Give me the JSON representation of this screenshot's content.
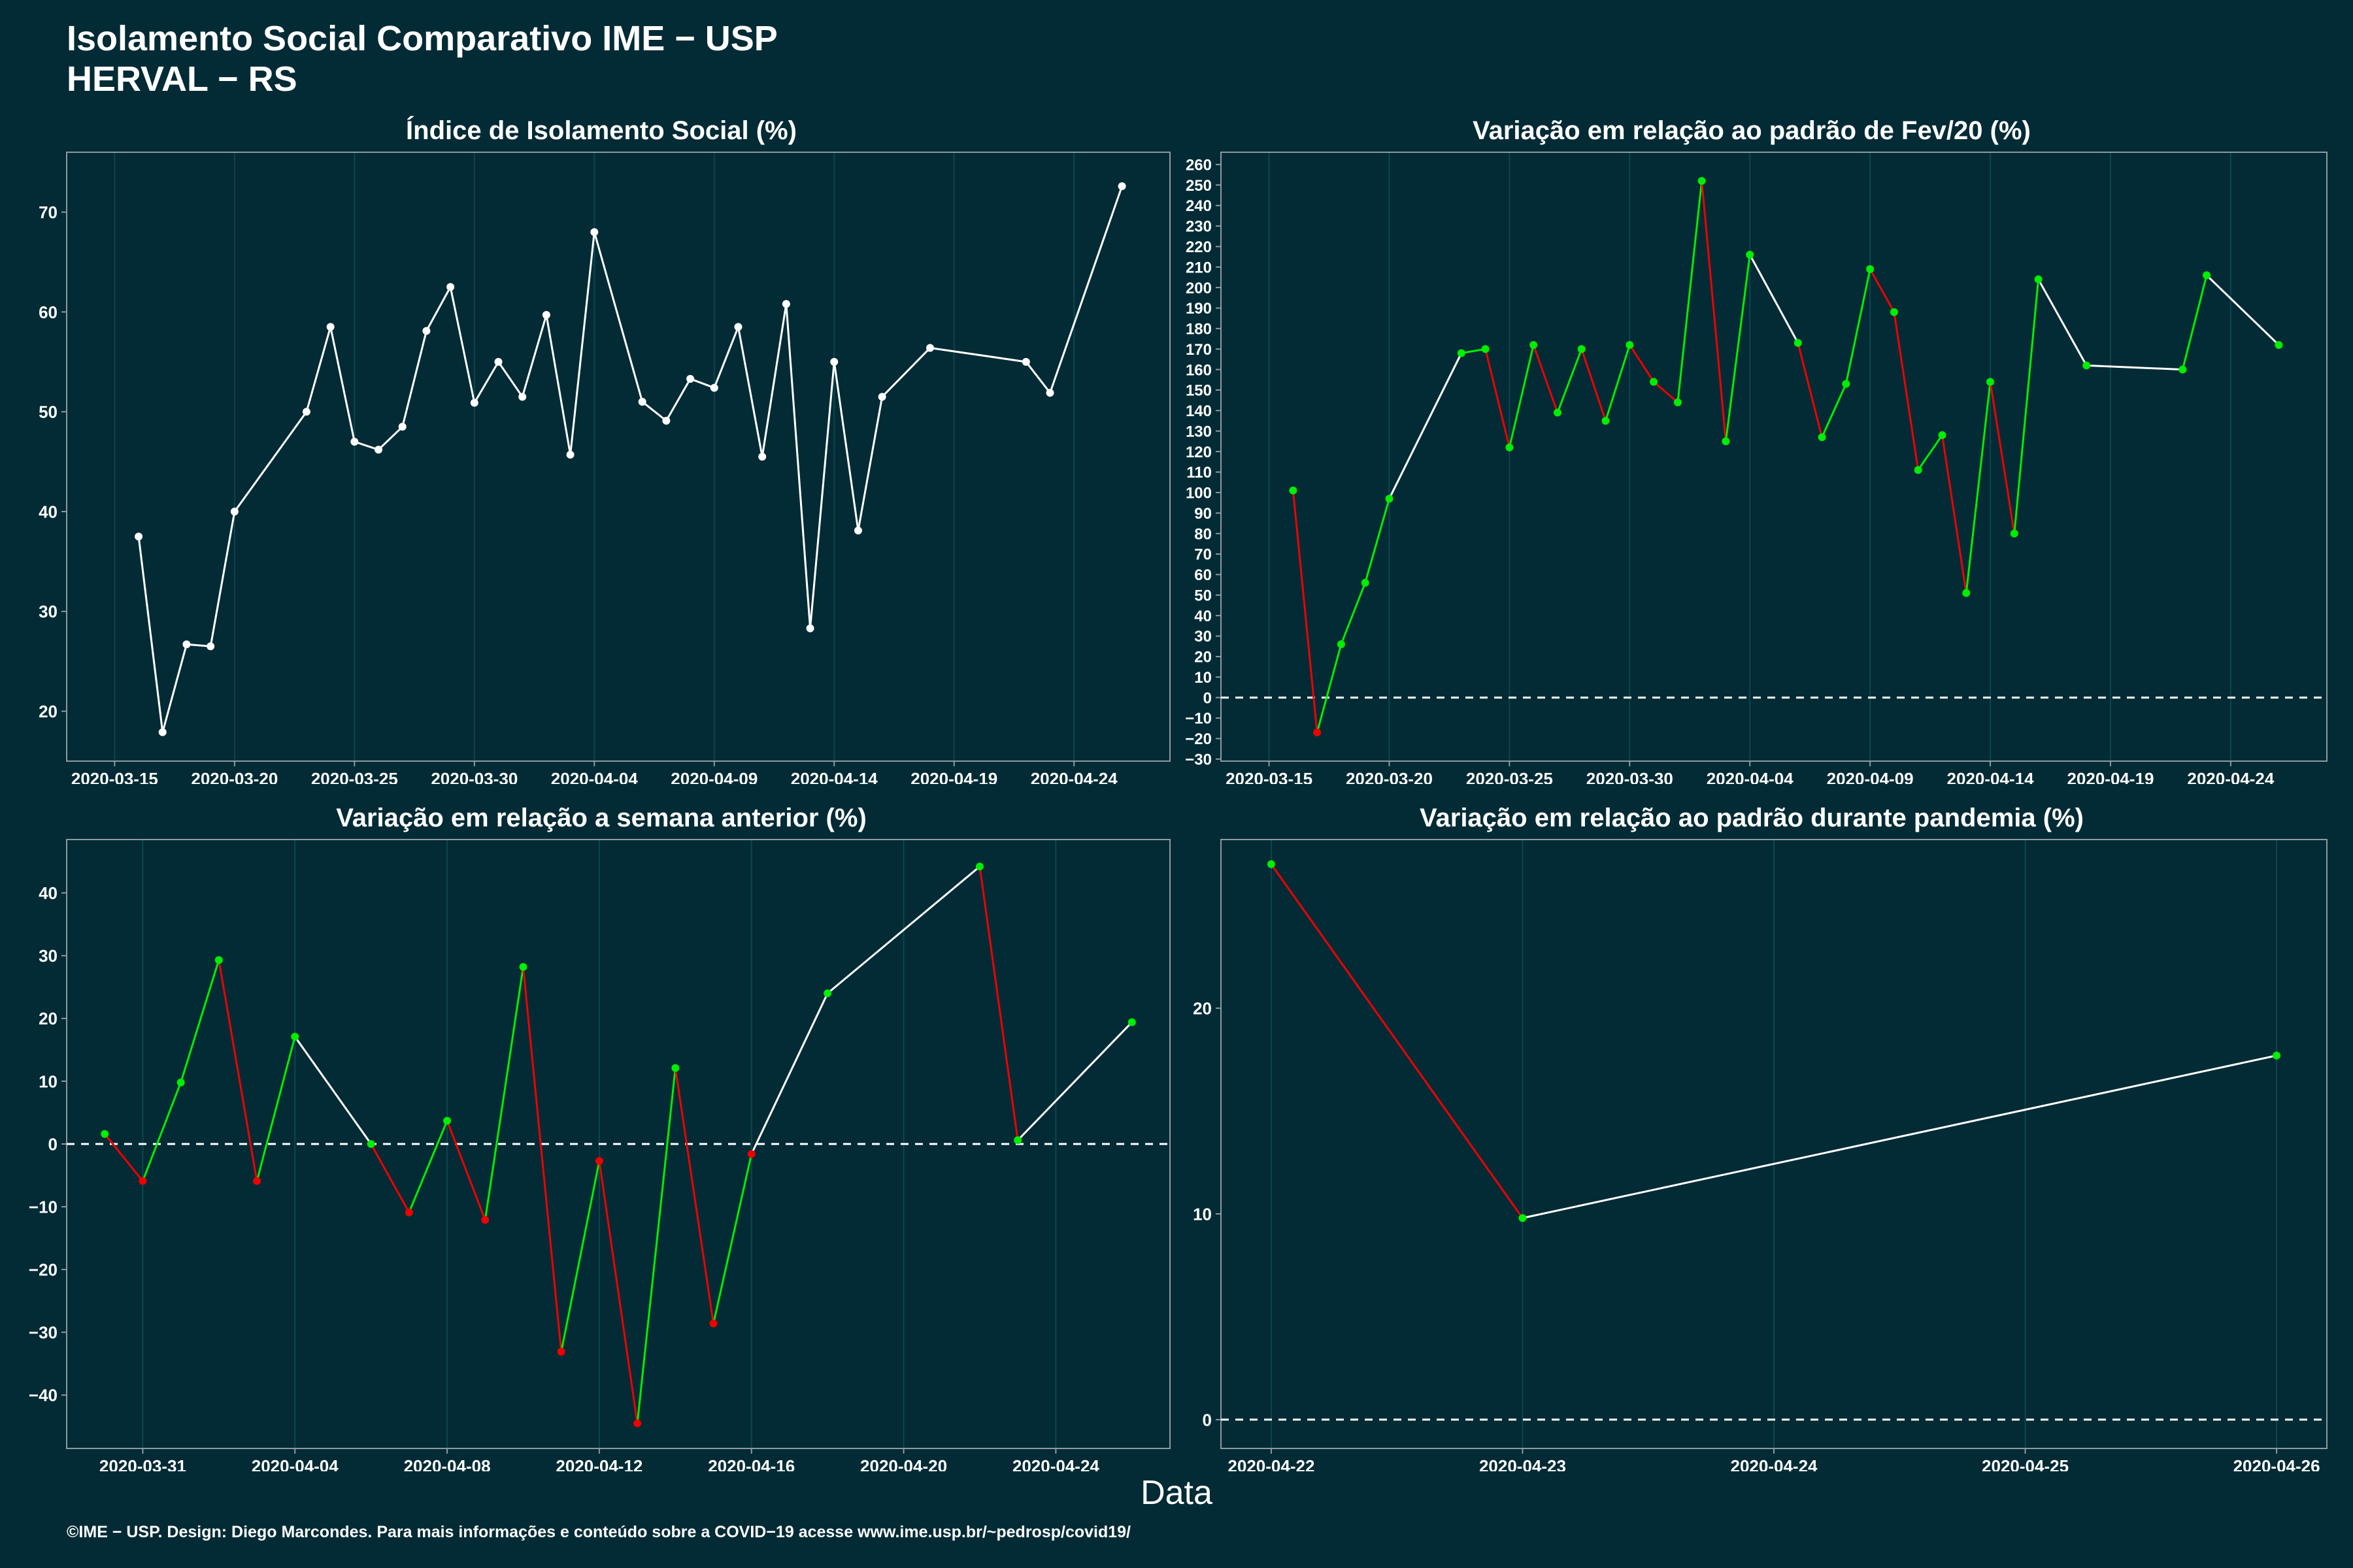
{
  "title_line1": "Isolamento Social Comparativo IME − USP",
  "title_line2": "HERVAL − RS",
  "x_axis_title": "Data",
  "footer": "©IME − USP. Design: Diego Marcondes. Para mais informações e conteúdo sobre a COVID−19 acesse www.ime.usp.br/~pedrosp/covid19/",
  "colors": {
    "background": "#022b35",
    "text": "#ffffff",
    "axis": "#8e9aa0",
    "grid": "#0d4650",
    "up": "#00ee00",
    "down": "#ee0000",
    "neutral": "#ffffff"
  },
  "chart_data": [
    {
      "id": "isolation",
      "type": "line",
      "title": "Índice de Isolamento Social (%)",
      "color_mode": "white",
      "baseline": null,
      "ylim": [
        15,
        76
      ],
      "yticks": [
        20,
        30,
        40,
        50,
        60,
        70
      ],
      "xlim": [
        "2020-03-13",
        "2020-04-28"
      ],
      "xticks": [
        "2020-03-15",
        "2020-03-20",
        "2020-03-25",
        "2020-03-30",
        "2020-04-04",
        "2020-04-09",
        "2020-04-14",
        "2020-04-19",
        "2020-04-24"
      ],
      "points": [
        [
          "2020-03-16",
          37.5
        ],
        [
          "2020-03-17",
          17.9
        ],
        [
          "2020-03-18",
          26.7
        ],
        [
          "2020-03-19",
          26.5
        ],
        [
          "2020-03-20",
          40.0
        ],
        [
          "2020-03-23",
          50.0
        ],
        [
          "2020-03-24",
          58.5
        ],
        [
          "2020-03-25",
          47.0
        ],
        [
          "2020-03-26",
          46.2
        ],
        [
          "2020-03-27",
          48.5
        ],
        [
          "2020-03-28",
          58.1
        ],
        [
          "2020-03-29",
          62.5
        ],
        [
          "2020-03-30",
          50.9
        ],
        [
          "2020-03-31",
          55.0
        ],
        [
          "2020-04-01",
          51.5
        ],
        [
          "2020-04-02",
          59.7
        ],
        [
          "2020-04-03",
          45.7
        ],
        [
          "2020-04-04",
          68.0
        ],
        [
          "2020-04-06",
          51.0
        ],
        [
          "2020-04-07",
          49.1
        ],
        [
          "2020-04-08",
          53.3
        ],
        [
          "2020-04-09",
          52.4
        ],
        [
          "2020-04-10",
          58.5
        ],
        [
          "2020-04-11",
          45.5
        ],
        [
          "2020-04-12",
          60.8
        ],
        [
          "2020-04-13",
          28.3
        ],
        [
          "2020-04-14",
          55.0
        ],
        [
          "2020-04-15",
          38.1
        ],
        [
          "2020-04-16",
          51.5
        ],
        [
          "2020-04-18",
          56.4
        ],
        [
          "2020-04-22",
          55.0
        ],
        [
          "2020-04-23",
          51.9
        ],
        [
          "2020-04-26",
          72.6
        ]
      ]
    },
    {
      "id": "vs-feb",
      "type": "line",
      "title": "Variação em relação ao padrão de Fev/20 (%)",
      "color_mode": "trend",
      "baseline": 0,
      "ylim": [
        -31,
        266
      ],
      "yticks": [
        -30,
        -20,
        -10,
        0,
        10,
        20,
        30,
        40,
        50,
        60,
        70,
        80,
        90,
        100,
        110,
        120,
        130,
        140,
        150,
        160,
        170,
        180,
        190,
        200,
        210,
        220,
        230,
        240,
        250,
        260
      ],
      "xlim": [
        "2020-03-13",
        "2020-04-28"
      ],
      "xticks": [
        "2020-03-15",
        "2020-03-20",
        "2020-03-25",
        "2020-03-30",
        "2020-04-04",
        "2020-04-09",
        "2020-04-14",
        "2020-04-19",
        "2020-04-24"
      ],
      "points": [
        [
          "2020-03-16",
          101
        ],
        [
          "2020-03-17",
          -17
        ],
        [
          "2020-03-18",
          26
        ],
        [
          "2020-03-19",
          56
        ],
        [
          "2020-03-20",
          97
        ],
        [
          "2020-03-23",
          168
        ],
        [
          "2020-03-24",
          170
        ],
        [
          "2020-03-25",
          122
        ],
        [
          "2020-03-26",
          172
        ],
        [
          "2020-03-27",
          139
        ],
        [
          "2020-03-28",
          170
        ],
        [
          "2020-03-29",
          135
        ],
        [
          "2020-03-30",
          172
        ],
        [
          "2020-03-31",
          154
        ],
        [
          "2020-04-01",
          144
        ],
        [
          "2020-04-02",
          252
        ],
        [
          "2020-04-03",
          125
        ],
        [
          "2020-04-04",
          216
        ],
        [
          "2020-04-06",
          173
        ],
        [
          "2020-04-07",
          127
        ],
        [
          "2020-04-08",
          153
        ],
        [
          "2020-04-09",
          209
        ],
        [
          "2020-04-10",
          188
        ],
        [
          "2020-04-11",
          111
        ],
        [
          "2020-04-12",
          128
        ],
        [
          "2020-04-13",
          51
        ],
        [
          "2020-04-14",
          154
        ],
        [
          "2020-04-15",
          80
        ],
        [
          "2020-04-16",
          204
        ],
        [
          "2020-04-18",
          162
        ],
        [
          "2020-04-22",
          160
        ],
        [
          "2020-04-23",
          206
        ],
        [
          "2020-04-26",
          172
        ]
      ]
    },
    {
      "id": "vs-week",
      "type": "line",
      "title": "Variação em relação a semana anterior (%)",
      "color_mode": "trend",
      "baseline": 0,
      "ylim": [
        -48.5,
        48.5
      ],
      "yticks": [
        -40,
        -30,
        -20,
        -10,
        0,
        10,
        20,
        30,
        40
      ],
      "xtick_labels": [
        "−40",
        "−30",
        "−20",
        "−10",
        "0",
        "10",
        "20",
        "30",
        "40"
      ],
      "xlim": [
        "2020-03-29",
        "2020-04-27"
      ],
      "xticks": [
        "2020-03-31",
        "2020-04-04",
        "2020-04-08",
        "2020-04-12",
        "2020-04-16",
        "2020-04-20",
        "2020-04-24"
      ],
      "points": [
        [
          "2020-03-30",
          1.6
        ],
        [
          "2020-03-31",
          -5.9
        ],
        [
          "2020-04-01",
          9.8
        ],
        [
          "2020-04-02",
          29.3
        ],
        [
          "2020-04-03",
          -5.9
        ],
        [
          "2020-04-04",
          17.1
        ],
        [
          "2020-04-06",
          0.0
        ],
        [
          "2020-04-07",
          -10.9
        ],
        [
          "2020-04-08",
          3.7
        ],
        [
          "2020-04-09",
          -12.1
        ],
        [
          "2020-04-10",
          28.2
        ],
        [
          "2020-04-11",
          -33.1
        ],
        [
          "2020-04-12",
          -2.7
        ],
        [
          "2020-04-13",
          -44.5
        ],
        [
          "2020-04-14",
          12.1
        ],
        [
          "2020-04-15",
          -28.6
        ],
        [
          "2020-04-16",
          -1.6
        ],
        [
          "2020-04-18",
          24.0
        ],
        [
          "2020-04-22",
          44.2
        ],
        [
          "2020-04-23",
          0.6
        ],
        [
          "2020-04-26",
          19.4
        ]
      ]
    },
    {
      "id": "vs-pandemic",
      "type": "line",
      "title": "Variação em relação ao padrão durante pandemia (%)",
      "color_mode": "trend",
      "baseline": 0,
      "ylim": [
        -1.4,
        28.2
      ],
      "yticks": [
        0,
        10,
        20
      ],
      "xlim": [
        "2020-04-21T19:12",
        "2020-04-26T04:48"
      ],
      "xticks": [
        "2020-04-22",
        "2020-04-23",
        "2020-04-24",
        "2020-04-25",
        "2020-04-26"
      ],
      "points": [
        [
          "2020-04-22",
          27.0
        ],
        [
          "2020-04-23",
          9.8
        ],
        [
          "2020-04-26",
          17.7
        ]
      ]
    }
  ]
}
